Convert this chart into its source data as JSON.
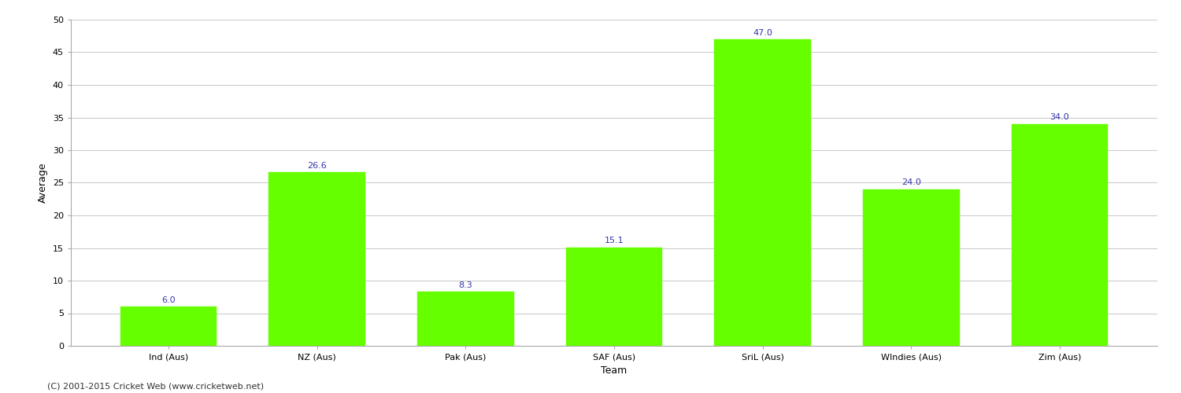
{
  "categories": [
    "Ind (Aus)",
    "NZ (Aus)",
    "Pak (Aus)",
    "SAF (Aus)",
    "SriL (Aus)",
    "WIndies (Aus)",
    "Zim (Aus)"
  ],
  "values": [
    6.0,
    26.6,
    8.3,
    15.1,
    47.0,
    24.0,
    34.0
  ],
  "bar_color": "#66ff00",
  "bar_edge_color": "#66ff00",
  "label_color": "#3333aa",
  "label_fontsize": 8,
  "ylabel": "Average",
  "xlabel": "Team",
  "ylim": [
    0,
    50
  ],
  "yticks": [
    0,
    5,
    10,
    15,
    20,
    25,
    30,
    35,
    40,
    45,
    50
  ],
  "grid_color": "#cccccc",
  "bg_color": "#ffffff",
  "footnote": "(C) 2001-2015 Cricket Web (www.cricketweb.net)",
  "footnote_fontsize": 8,
  "axis_label_fontsize": 9,
  "tick_fontsize": 8,
  "bar_width": 0.65
}
